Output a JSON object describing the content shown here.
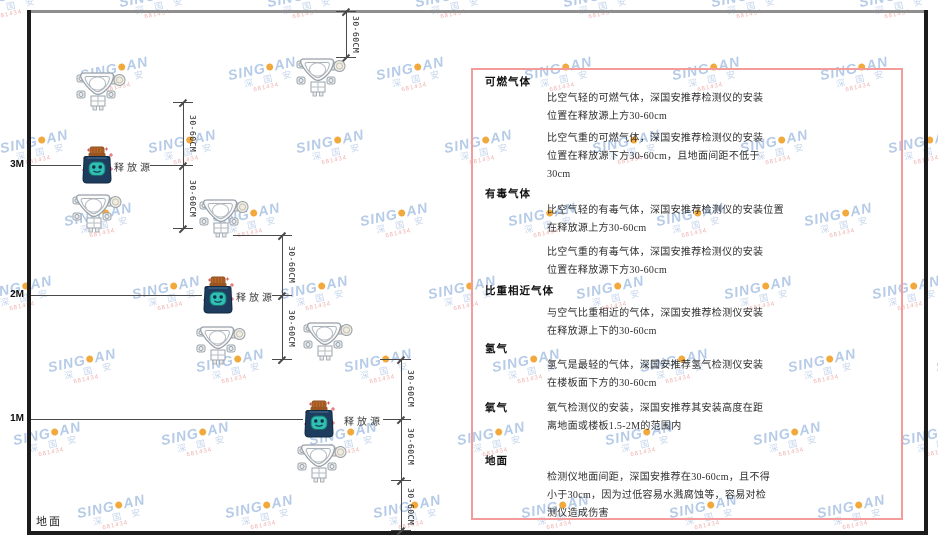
{
  "watermark": {
    "brand_left": "SING",
    "brand_right": "AN",
    "cn": "深 国 安",
    "code": "681434"
  },
  "diagram": {
    "heights": [
      "3M",
      "2M",
      "1M"
    ],
    "ground_label": "地面",
    "release_source_label": "释放源",
    "dim_label": "30-60CM"
  },
  "panel": {
    "sections": [
      {
        "title": "可燃气体",
        "paragraphs": [
          {
            "lines": [
              "比空气轻的可燃气体，深国安推荐检测仪的安装",
              "位置在释放源上方30-60cm"
            ]
          },
          {
            "lines": [
              "比空气重的可燃气体，深国安推荐检测仪的安装",
              "位置在释放源下方30-60cm，且地面间距不低于",
              "30cm"
            ]
          }
        ]
      },
      {
        "title": "有毒气体",
        "paragraphs": [
          {
            "lines": [
              "比空气轻的有毒气体，深国安推荐检测仪的安装位置",
              "在释放源上方30-60cm"
            ]
          },
          {
            "lines": [
              "比空气重的有毒气体，深国安推荐检测仪的安装",
              "位置在释放源下方30-60cm"
            ]
          }
        ]
      },
      {
        "title": "比重相近气体",
        "paragraphs": [
          {
            "lines": [
              "与空气比重相近的气体，深国安推荐检测仪安装",
              "在释放源上下的30-60cm"
            ]
          }
        ]
      },
      {
        "title": "氢气",
        "paragraphs": [
          {
            "lines": [
              "氢气是最轻的气体，深国安推荐氢气检测仪安装",
              "在楼板面下方的30-60cm"
            ]
          }
        ]
      },
      {
        "title": "氧气",
        "paragraphs": [
          {
            "lines": [
              "氧气检测仪的安装，深国安推荐其安装高度在距",
              "离地面或楼板1.5-2M的范围内"
            ]
          }
        ]
      },
      {
        "title": "地面",
        "paragraphs": [
          {
            "lines": [
              "检测仪地面间距，深国安推荐在30-60cm，且不得",
              "小于30cm，因为过低容易水溅腐蚀等，容易对检",
              "测仪造成伤害"
            ]
          }
        ]
      }
    ]
  }
}
